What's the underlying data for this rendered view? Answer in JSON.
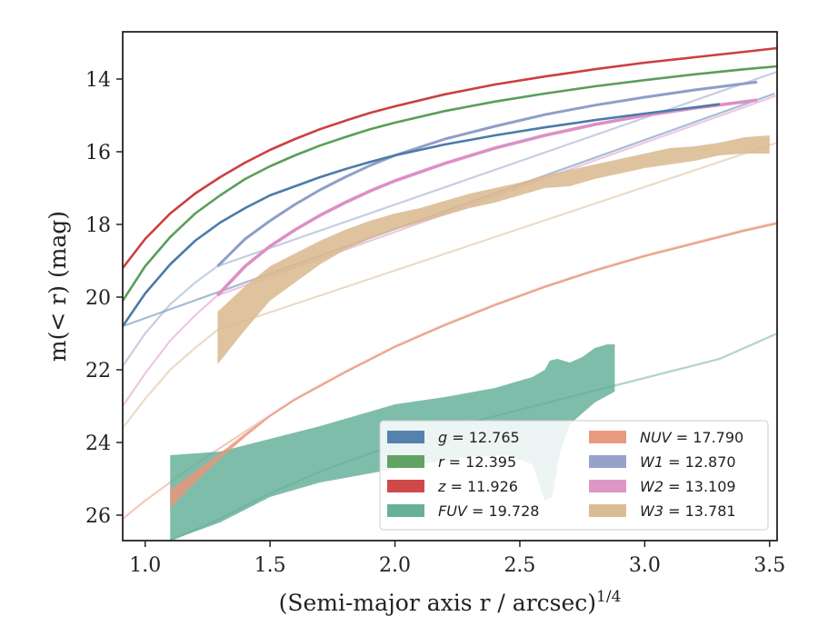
{
  "chart_data": {
    "type": "line",
    "xlabel": "(Semi-major axis r / arcsec)",
    "xlabel_sup": "1/4",
    "ylabel": "m(< r) (mag)",
    "xlim": [
      0.91,
      3.53
    ],
    "ylim": [
      26.7,
      12.7
    ],
    "y_inverted": true,
    "x_ticks": [
      1.0,
      1.5,
      2.0,
      2.5,
      3.0,
      3.5
    ],
    "x_tick_labels": [
      "1.0",
      "1.5",
      "2.0",
      "2.5",
      "3.0",
      "3.5"
    ],
    "y_ticks": [
      14,
      16,
      18,
      20,
      22,
      24,
      26
    ],
    "y_tick_labels": [
      "14",
      "16",
      "18",
      "20",
      "22",
      "24",
      "26"
    ],
    "grid": false,
    "legend_position": "lower-right",
    "legend_columns": 2,
    "series": [
      {
        "name": "g",
        "legend_value": "= 12.765",
        "color": "#4c7ba8",
        "extrap_points": [
          [
            0.91,
            20.8
          ],
          [
            3.52,
            14.4
          ]
        ],
        "measured_points": [
          [
            0.91,
            20.8
          ],
          [
            1.0,
            19.9
          ],
          [
            1.1,
            19.1
          ],
          [
            1.2,
            18.45
          ],
          [
            1.3,
            17.95
          ],
          [
            1.4,
            17.55
          ],
          [
            1.5,
            17.2
          ],
          [
            1.6,
            16.95
          ],
          [
            1.7,
            16.7
          ],
          [
            1.8,
            16.48
          ],
          [
            1.9,
            16.28
          ],
          [
            2.0,
            16.1
          ],
          [
            2.2,
            15.8
          ],
          [
            2.4,
            15.55
          ],
          [
            2.6,
            15.33
          ],
          [
            2.8,
            15.13
          ],
          [
            3.0,
            14.95
          ],
          [
            3.2,
            14.78
          ],
          [
            3.3,
            14.69
          ]
        ],
        "band_width": 0.08
      },
      {
        "name": "r",
        "legend_value": "= 12.395",
        "color": "#5a9e5a",
        "measured_points": [
          [
            0.91,
            20.1
          ],
          [
            1.0,
            19.15
          ],
          [
            1.1,
            18.35
          ],
          [
            1.2,
            17.7
          ],
          [
            1.3,
            17.2
          ],
          [
            1.4,
            16.75
          ],
          [
            1.5,
            16.4
          ],
          [
            1.6,
            16.1
          ],
          [
            1.7,
            15.83
          ],
          [
            1.8,
            15.6
          ],
          [
            1.9,
            15.38
          ],
          [
            2.0,
            15.2
          ],
          [
            2.2,
            14.88
          ],
          [
            2.4,
            14.62
          ],
          [
            2.6,
            14.4
          ],
          [
            2.8,
            14.2
          ],
          [
            3.0,
            14.03
          ],
          [
            3.2,
            13.87
          ],
          [
            3.4,
            13.73
          ],
          [
            3.53,
            13.65
          ]
        ],
        "band_width": 0.08
      },
      {
        "name": "z",
        "legend_value": "= 11.926",
        "color": "#cc3f3f",
        "measured_points": [
          [
            0.91,
            19.2
          ],
          [
            1.0,
            18.4
          ],
          [
            1.1,
            17.7
          ],
          [
            1.2,
            17.15
          ],
          [
            1.3,
            16.7
          ],
          [
            1.4,
            16.3
          ],
          [
            1.5,
            15.95
          ],
          [
            1.6,
            15.65
          ],
          [
            1.7,
            15.38
          ],
          [
            1.8,
            15.15
          ],
          [
            1.9,
            14.93
          ],
          [
            2.0,
            14.75
          ],
          [
            2.2,
            14.42
          ],
          [
            2.4,
            14.15
          ],
          [
            2.6,
            13.93
          ],
          [
            2.8,
            13.73
          ],
          [
            3.0,
            13.55
          ],
          [
            3.2,
            13.4
          ],
          [
            3.4,
            13.25
          ],
          [
            3.53,
            13.15
          ]
        ],
        "band_width": 0.08
      },
      {
        "name": "FUV",
        "legend_value": "= 19.728",
        "color": "#5fad96",
        "extrap_points": [
          [
            1.1,
            26.7
          ],
          [
            1.3,
            26.1
          ],
          [
            1.5,
            25.4
          ],
          [
            1.7,
            24.8
          ],
          [
            1.9,
            24.3
          ],
          [
            2.1,
            23.85
          ],
          [
            2.3,
            23.45
          ],
          [
            2.5,
            23.1
          ],
          [
            2.7,
            22.75
          ],
          [
            2.9,
            22.4
          ],
          [
            3.1,
            22.05
          ],
          [
            3.3,
            21.7
          ],
          [
            3.53,
            21.0
          ]
        ],
        "band_upper": [
          [
            1.1,
            24.35
          ],
          [
            1.3,
            24.25
          ],
          [
            1.5,
            23.9
          ],
          [
            1.7,
            23.55
          ],
          [
            1.9,
            23.15
          ],
          [
            2.0,
            22.95
          ],
          [
            2.2,
            22.75
          ],
          [
            2.4,
            22.5
          ],
          [
            2.55,
            22.2
          ],
          [
            2.6,
            22.0
          ],
          [
            2.62,
            21.75
          ],
          [
            2.65,
            21.7
          ],
          [
            2.7,
            21.8
          ],
          [
            2.75,
            21.65
          ],
          [
            2.8,
            21.4
          ],
          [
            2.85,
            21.3
          ],
          [
            2.88,
            21.3
          ]
        ],
        "band_lower": [
          [
            1.1,
            26.7
          ],
          [
            1.3,
            26.2
          ],
          [
            1.5,
            25.5
          ],
          [
            1.7,
            25.1
          ],
          [
            1.9,
            24.85
          ],
          [
            2.1,
            24.6
          ],
          [
            2.3,
            24.4
          ],
          [
            2.45,
            24.35
          ],
          [
            2.55,
            24.6
          ],
          [
            2.6,
            25.6
          ],
          [
            2.63,
            25.5
          ],
          [
            2.66,
            24.3
          ],
          [
            2.7,
            23.5
          ],
          [
            2.8,
            22.9
          ],
          [
            2.88,
            22.6
          ]
        ]
      },
      {
        "name": "NUV",
        "legend_value": "= 17.790",
        "color": "#e8967a",
        "extrap_points": [
          [
            0.91,
            26.1
          ],
          [
            1.0,
            25.6
          ],
          [
            1.1,
            25.1
          ],
          [
            1.2,
            24.6
          ],
          [
            1.3,
            24.15
          ],
          [
            1.4,
            23.7
          ],
          [
            1.5,
            23.25
          ],
          [
            1.6,
            22.8
          ],
          [
            1.8,
            22.05
          ],
          [
            2.0,
            21.35
          ],
          [
            2.2,
            20.75
          ],
          [
            2.4,
            20.2
          ],
          [
            2.6,
            19.7
          ],
          [
            2.8,
            19.25
          ],
          [
            3.0,
            18.85
          ],
          [
            3.2,
            18.5
          ],
          [
            3.4,
            18.15
          ],
          [
            3.53,
            17.95
          ]
        ],
        "band_upper": [
          [
            1.1,
            25.3
          ],
          [
            1.2,
            24.8
          ],
          [
            1.3,
            24.3
          ],
          [
            1.4,
            23.75
          ],
          [
            1.5,
            23.25
          ],
          [
            1.6,
            22.8
          ],
          [
            1.8,
            22.05
          ],
          [
            2.0,
            21.35
          ],
          [
            2.2,
            20.75
          ],
          [
            2.4,
            20.2
          ],
          [
            2.6,
            19.7
          ],
          [
            2.8,
            19.25
          ],
          [
            3.0,
            18.85
          ],
          [
            3.2,
            18.5
          ],
          [
            3.4,
            18.15
          ],
          [
            3.53,
            17.95
          ]
        ],
        "band_lower": [
          [
            1.1,
            25.8
          ],
          [
            1.2,
            25.1
          ],
          [
            1.3,
            24.45
          ],
          [
            1.4,
            23.85
          ],
          [
            1.5,
            23.3
          ],
          [
            1.6,
            22.85
          ],
          [
            1.8,
            22.1
          ],
          [
            2.0,
            21.4
          ],
          [
            2.2,
            20.8
          ],
          [
            2.4,
            20.25
          ],
          [
            2.6,
            19.75
          ],
          [
            2.8,
            19.3
          ],
          [
            3.0,
            18.9
          ],
          [
            3.2,
            18.55
          ],
          [
            3.4,
            18.2
          ],
          [
            3.53,
            18.0
          ]
        ]
      },
      {
        "name": "W1",
        "legend_value": "= 12.870",
        "color": "#8f9ec9",
        "extrap_points": [
          [
            0.91,
            21.9
          ],
          [
            1.0,
            21.0
          ],
          [
            1.1,
            20.2
          ],
          [
            1.2,
            19.6
          ],
          [
            1.29,
            19.15
          ],
          [
            3.53,
            13.8
          ]
        ],
        "measured_points": [
          [
            1.29,
            19.15
          ],
          [
            1.4,
            18.4
          ],
          [
            1.5,
            17.9
          ],
          [
            1.6,
            17.45
          ],
          [
            1.7,
            17.05
          ],
          [
            1.8,
            16.7
          ],
          [
            1.9,
            16.38
          ],
          [
            2.0,
            16.1
          ],
          [
            2.2,
            15.65
          ],
          [
            2.4,
            15.3
          ],
          [
            2.6,
            14.98
          ],
          [
            2.8,
            14.72
          ],
          [
            3.0,
            14.5
          ],
          [
            3.2,
            14.3
          ],
          [
            3.45,
            14.08
          ]
        ],
        "band_width": 0.1
      },
      {
        "name": "W2",
        "legend_value": "= 13.109",
        "color": "#dc90c4",
        "extrap_points": [
          [
            0.91,
            23.0
          ],
          [
            1.0,
            22.1
          ],
          [
            1.1,
            21.2
          ],
          [
            1.2,
            20.5
          ],
          [
            1.29,
            19.95
          ],
          [
            3.53,
            14.45
          ]
        ],
        "measured_points": [
          [
            1.29,
            19.95
          ],
          [
            1.4,
            19.15
          ],
          [
            1.5,
            18.6
          ],
          [
            1.6,
            18.15
          ],
          [
            1.7,
            17.75
          ],
          [
            1.8,
            17.4
          ],
          [
            1.9,
            17.08
          ],
          [
            2.0,
            16.8
          ],
          [
            2.2,
            16.32
          ],
          [
            2.4,
            15.9
          ],
          [
            2.6,
            15.55
          ],
          [
            2.8,
            15.25
          ],
          [
            3.0,
            15.0
          ],
          [
            3.2,
            14.8
          ],
          [
            3.45,
            14.58
          ]
        ],
        "band_width": 0.12
      },
      {
        "name": "W3",
        "legend_value": "= 13.781",
        "color": "#d9b98e",
        "extrap_points": [
          [
            0.91,
            23.6
          ],
          [
            1.0,
            22.8
          ],
          [
            1.1,
            22.0
          ],
          [
            1.2,
            21.4
          ],
          [
            1.29,
            20.9
          ],
          [
            3.53,
            15.75
          ]
        ],
        "band_upper": [
          [
            1.29,
            20.4
          ],
          [
            1.4,
            19.7
          ],
          [
            1.5,
            19.15
          ],
          [
            1.6,
            18.8
          ],
          [
            1.7,
            18.45
          ],
          [
            1.8,
            18.15
          ],
          [
            1.9,
            17.9
          ],
          [
            2.0,
            17.7
          ],
          [
            2.1,
            17.55
          ],
          [
            2.2,
            17.35
          ],
          [
            2.3,
            17.15
          ],
          [
            2.4,
            17.0
          ],
          [
            2.5,
            16.85
          ],
          [
            2.6,
            16.65
          ],
          [
            2.7,
            16.5
          ],
          [
            2.8,
            16.35
          ],
          [
            2.9,
            16.2
          ],
          [
            3.0,
            16.05
          ],
          [
            3.1,
            15.9
          ],
          [
            3.2,
            15.85
          ],
          [
            3.3,
            15.75
          ],
          [
            3.4,
            15.6
          ],
          [
            3.5,
            15.55
          ]
        ],
        "band_lower": [
          [
            1.29,
            21.85
          ],
          [
            1.4,
            20.9
          ],
          [
            1.5,
            20.1
          ],
          [
            1.6,
            19.6
          ],
          [
            1.7,
            19.1
          ],
          [
            1.8,
            18.7
          ],
          [
            1.9,
            18.4
          ],
          [
            2.0,
            18.15
          ],
          [
            2.1,
            17.95
          ],
          [
            2.2,
            17.75
          ],
          [
            2.3,
            17.55
          ],
          [
            2.4,
            17.4
          ],
          [
            2.5,
            17.2
          ],
          [
            2.6,
            17.0
          ],
          [
            2.7,
            16.95
          ],
          [
            2.8,
            16.75
          ],
          [
            2.9,
            16.6
          ],
          [
            3.0,
            16.45
          ],
          [
            3.1,
            16.35
          ],
          [
            3.2,
            16.25
          ],
          [
            3.3,
            16.1
          ],
          [
            3.4,
            16.05
          ],
          [
            3.5,
            16.05
          ]
        ]
      }
    ]
  }
}
